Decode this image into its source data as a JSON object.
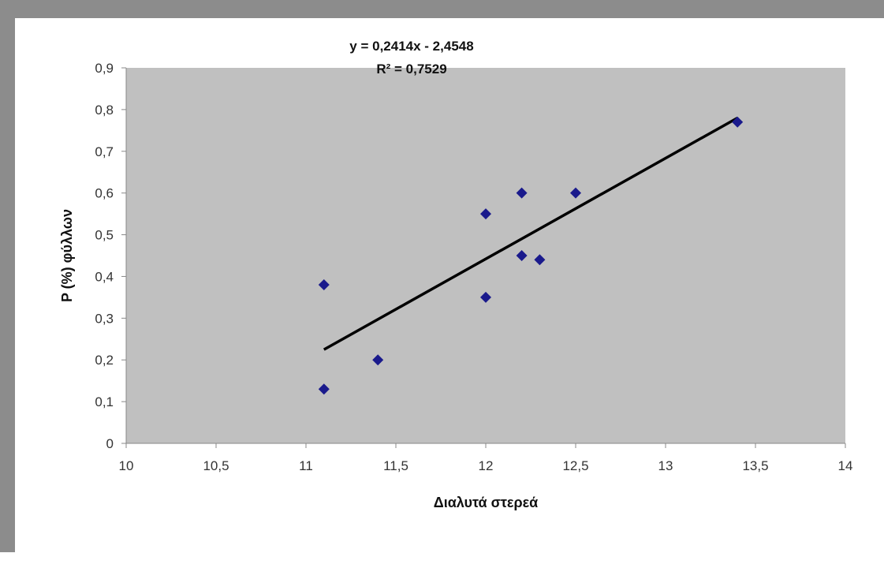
{
  "chart_data": {
    "type": "scatter",
    "xlabel": "Διαλυτά στερεά",
    "ylabel": "P (%) φύλλων",
    "xlim": [
      10,
      14
    ],
    "ylim": [
      0,
      0.9
    ],
    "x_ticks": [
      "10",
      "10,5",
      "11",
      "11,5",
      "12",
      "12,5",
      "13",
      "13,5",
      "14"
    ],
    "x_tick_values": [
      10,
      10.5,
      11,
      11.5,
      12,
      12.5,
      13,
      13.5,
      14
    ],
    "y_ticks": [
      "0",
      "0,1",
      "0,2",
      "0,3",
      "0,4",
      "0,5",
      "0,6",
      "0,7",
      "0,8",
      "0,9"
    ],
    "y_tick_values": [
      0,
      0.1,
      0.2,
      0.3,
      0.4,
      0.5,
      0.6,
      0.7,
      0.8,
      0.9
    ],
    "series": [
      {
        "points": [
          {
            "x": 11.1,
            "y": 0.38
          },
          {
            "x": 11.1,
            "y": 0.13
          },
          {
            "x": 11.4,
            "y": 0.2
          },
          {
            "x": 12.0,
            "y": 0.55
          },
          {
            "x": 12.0,
            "y": 0.35
          },
          {
            "x": 12.2,
            "y": 0.6
          },
          {
            "x": 12.2,
            "y": 0.45
          },
          {
            "x": 12.3,
            "y": 0.44
          },
          {
            "x": 12.5,
            "y": 0.6
          },
          {
            "x": 13.4,
            "y": 0.77
          }
        ],
        "marker": "diamond",
        "color": "#1a1a8c"
      }
    ],
    "trendline": {
      "type": "linear",
      "slope": 0.2414,
      "intercept": -2.4548,
      "x_range": [
        11.1,
        13.4
      ],
      "equation_label": "y = 0,2414x - 2,4548",
      "r2_label": "R² = 0,7529",
      "color": "#000000"
    },
    "grid": false,
    "legend": "none",
    "colors": {
      "plot_area": "#c0c0c0",
      "axis_line": "#888888",
      "frame": "#8c8c8c"
    }
  }
}
